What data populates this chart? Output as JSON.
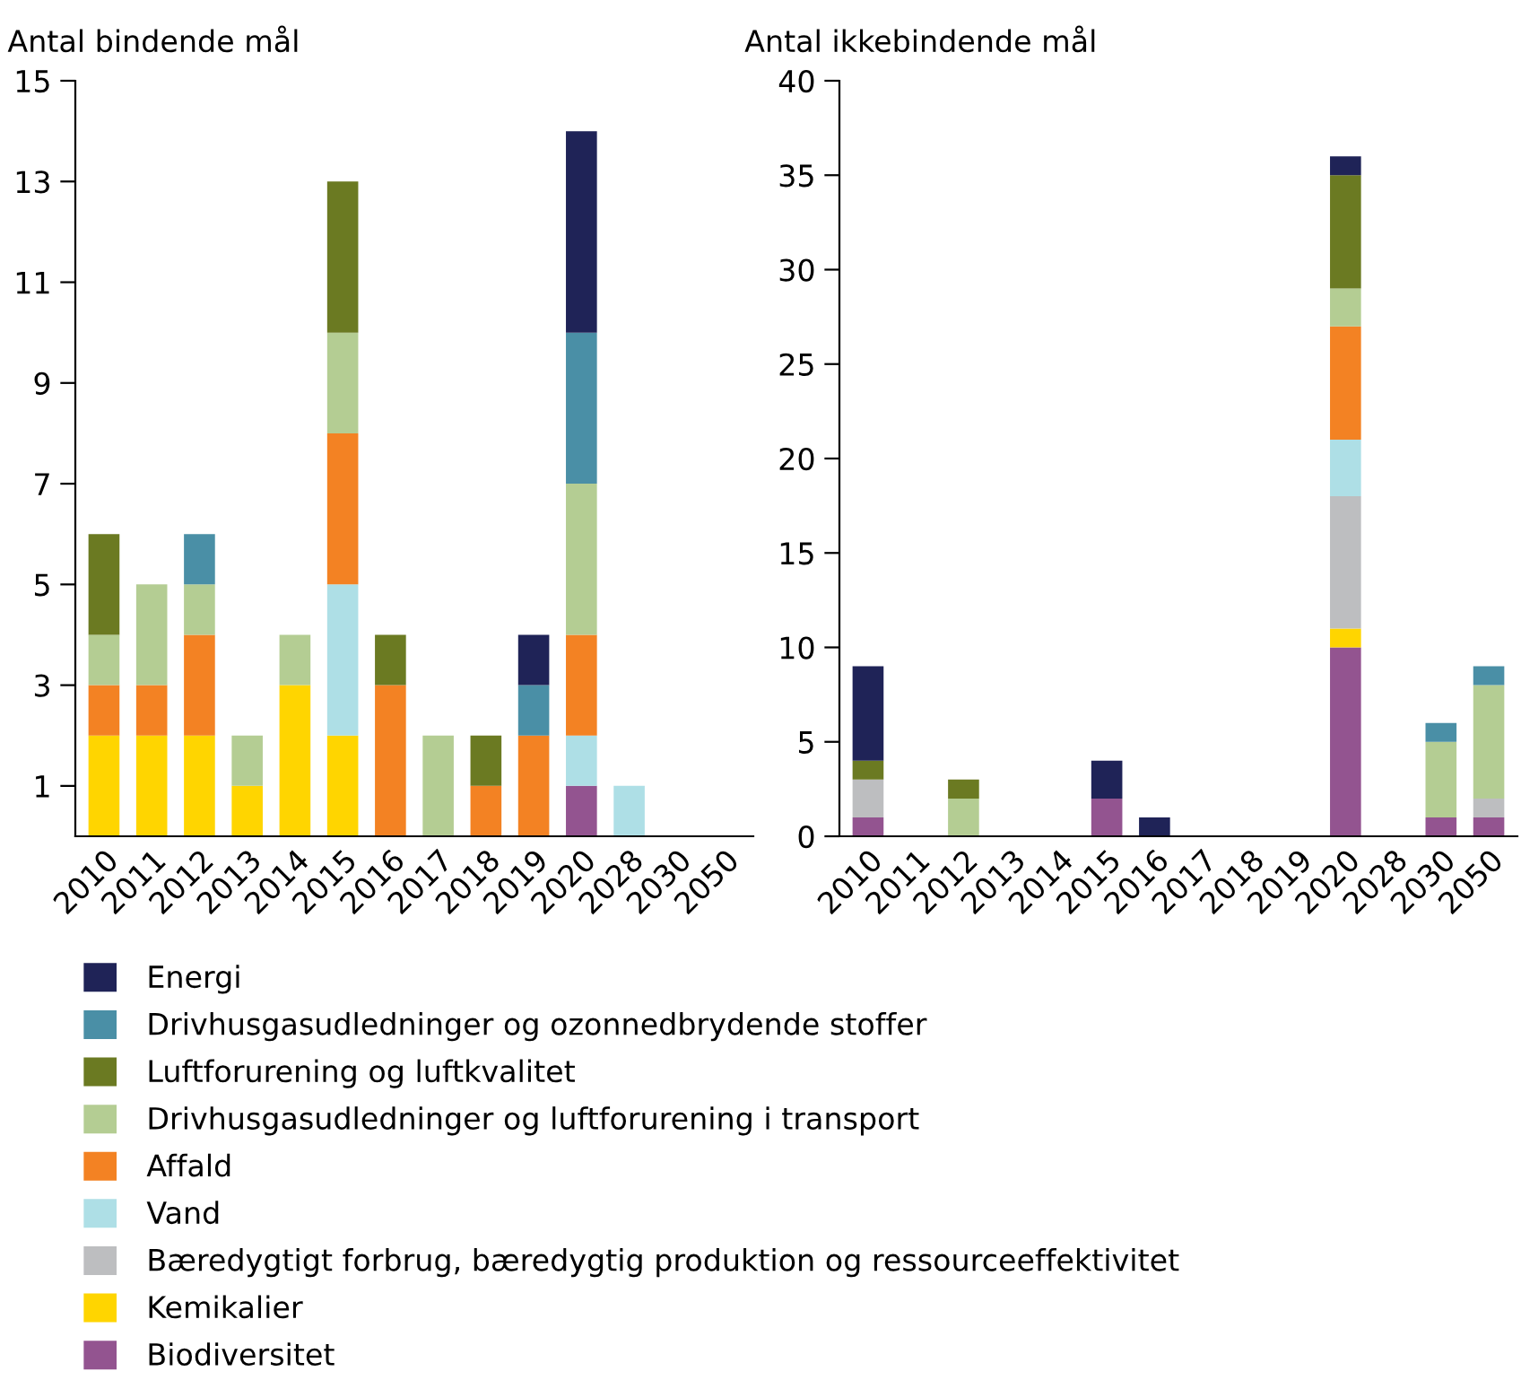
{
  "chart_data": [
    {
      "type": "bar",
      "stacked": true,
      "title": "Antal bindende mål",
      "legend": "bottom",
      "grid": false,
      "categories": [
        "2010",
        "2011",
        "2012",
        "2013",
        "2014",
        "2015",
        "2016",
        "2017",
        "2018",
        "2019",
        "2020",
        "2028",
        "2030",
        "2050"
      ],
      "ylim": [
        0,
        15
      ],
      "yticks": [
        1,
        3,
        5,
        7,
        9,
        11,
        13,
        15
      ],
      "series": [
        {
          "name": "Biodiversitet",
          "color": "#935490",
          "values": [
            0,
            0,
            0,
            0,
            0,
            0,
            0,
            0,
            0,
            0,
            1,
            0,
            0,
            0
          ]
        },
        {
          "name": "Kemikalier",
          "color": "#ffd500",
          "values": [
            2,
            2,
            2,
            1,
            3,
            2,
            0,
            0,
            0,
            0,
            0,
            0,
            0,
            0
          ]
        },
        {
          "name": "Bæredygtigt forbrug, bæredygtig produktion og ressourceeffektivitet",
          "color": "#bdbec0",
          "values": [
            0,
            0,
            0,
            0,
            0,
            0,
            0,
            0,
            0,
            0,
            0,
            0,
            0,
            0
          ]
        },
        {
          "name": "Vand",
          "color": "#aedfe6",
          "values": [
            0,
            0,
            0,
            0,
            0,
            3,
            0,
            0,
            0,
            0,
            1,
            1,
            0,
            0
          ]
        },
        {
          "name": "Affald",
          "color": "#f38223",
          "values": [
            1,
            1,
            2,
            0,
            0,
            3,
            3,
            0,
            1,
            2,
            2,
            0,
            0,
            0
          ]
        },
        {
          "name": "Drivhusgasudledninger og luftforurening i transport",
          "color": "#b4cd93",
          "values": [
            1,
            2,
            1,
            1,
            1,
            2,
            0,
            2,
            0,
            0,
            3,
            0,
            0,
            0
          ]
        },
        {
          "name": "Luftforurening og luftkvalitet",
          "color": "#6b7a22",
          "values": [
            2,
            0,
            0,
            0,
            0,
            3,
            1,
            0,
            1,
            0,
            0,
            0,
            0,
            0
          ]
        },
        {
          "name": "Drivhusgasudledninger og ozonnedbrydende stoffer",
          "color": "#4a8fa6",
          "values": [
            0,
            0,
            1,
            0,
            0,
            0,
            0,
            0,
            0,
            1,
            3,
            0,
            0,
            0
          ]
        },
        {
          "name": "Energi",
          "color": "#1f2357",
          "values": [
            0,
            0,
            0,
            0,
            0,
            0,
            0,
            0,
            0,
            1,
            4,
            0,
            0,
            0
          ]
        }
      ]
    },
    {
      "type": "bar",
      "stacked": true,
      "title": "Antal ikkebindende mål",
      "grid": false,
      "categories": [
        "2010",
        "2011",
        "2012",
        "2013",
        "2014",
        "2015",
        "2016",
        "2017",
        "2018",
        "2019",
        "2020",
        "2028",
        "2030",
        "2050"
      ],
      "ylim": [
        0,
        40
      ],
      "yticks": [
        0,
        5,
        10,
        15,
        20,
        25,
        30,
        35,
        40
      ],
      "series": [
        {
          "color": "#935490",
          "values": [
            1,
            0,
            0,
            0,
            0,
            2,
            0,
            0,
            0,
            0,
            10,
            0,
            1,
            1
          ]
        },
        {
          "color": "#ffd500",
          "values": [
            0,
            0,
            0,
            0,
            0,
            0,
            0,
            0,
            0,
            0,
            1,
            0,
            0,
            0
          ]
        },
        {
          "color": "#bdbec0",
          "values": [
            2,
            0,
            0,
            0,
            0,
            0,
            0,
            0,
            0,
            0,
            7,
            0,
            0,
            1
          ]
        },
        {
          "color": "#aedfe6",
          "values": [
            0,
            0,
            0,
            0,
            0,
            0,
            0,
            0,
            0,
            0,
            3,
            0,
            0,
            0
          ]
        },
        {
          "color": "#f38223",
          "values": [
            0,
            0,
            0,
            0,
            0,
            0,
            0,
            0,
            0,
            0,
            6,
            0,
            0,
            0
          ]
        },
        {
          "color": "#b4cd93",
          "values": [
            0,
            0,
            2,
            0,
            0,
            0,
            0,
            0,
            0,
            0,
            2,
            0,
            4,
            6
          ]
        },
        {
          "color": "#6b7a22",
          "values": [
            1,
            0,
            1,
            0,
            0,
            0,
            0,
            0,
            0,
            0,
            6,
            0,
            0,
            0
          ]
        },
        {
          "color": "#4a8fa6",
          "values": [
            0,
            0,
            0,
            0,
            0,
            0,
            0,
            0,
            0,
            0,
            0,
            0,
            1,
            1
          ]
        },
        {
          "color": "#1f2357",
          "values": [
            5,
            0,
            0,
            0,
            0,
            2,
            1,
            0,
            0,
            0,
            1,
            0,
            0,
            0
          ]
        }
      ]
    }
  ]
}
